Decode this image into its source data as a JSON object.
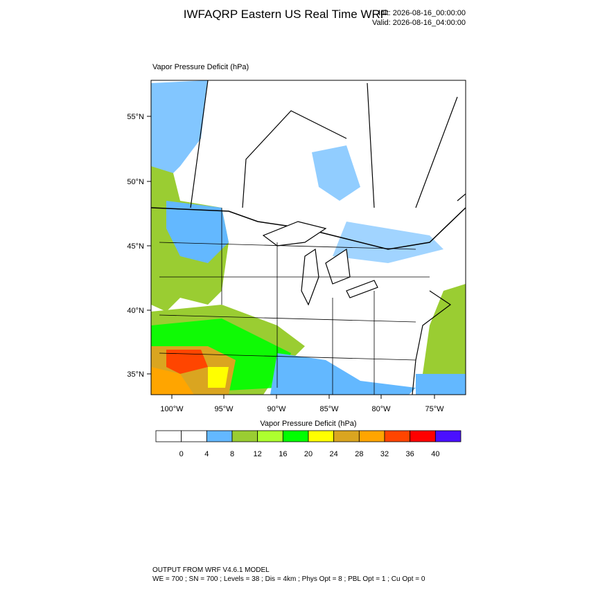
{
  "header": {
    "title": "IWFAQRP Eastern US Real Time WRF",
    "init": "Init: 2026-08-16_00:00:00",
    "valid": "Valid: 2026-08-16_04:00:00"
  },
  "map": {
    "field_label": "Vapor Pressure Deficit   (hPa)",
    "lat_labels": [
      "55°N",
      "50°N",
      "45°N",
      "40°N",
      "35°N"
    ],
    "lon_labels": [
      "100°W",
      "95°W",
      "90°W",
      "85°W",
      "80°W",
      "75°W"
    ]
  },
  "colorbar": {
    "title": "Vapor Pressure Deficit  (hPa)",
    "colors": [
      "#ffffff",
      "#ffffff",
      "#63b8ff",
      "#9acd32",
      "#adff2f",
      "#00ff00",
      "#ffff00",
      "#daa520",
      "#ffa500",
      "#ff4500",
      "#ff0000",
      "#4a10ff"
    ],
    "levels": [
      0,
      4,
      8,
      12,
      16,
      20,
      24,
      28,
      32,
      36,
      40
    ]
  },
  "footer": {
    "line1": "OUTPUT FROM WRF V4.6.1 MODEL",
    "line2": "WE = 700 ; SN = 700 ; Levels = 38 ; Dis = 4km ; Phys Opt = 8 ; PBL Opt = 1 ; Cu Opt = 0"
  }
}
